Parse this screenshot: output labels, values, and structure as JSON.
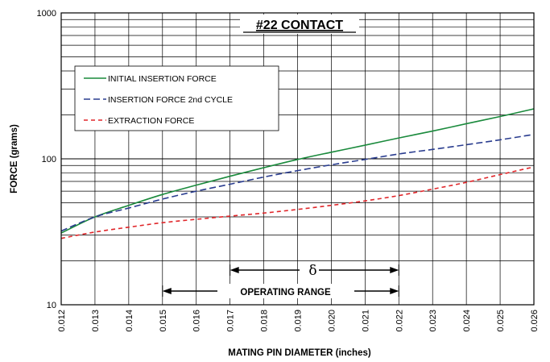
{
  "chart_data": {
    "type": "line",
    "title": "#22 CONTACT",
    "xlabel": "MATING PIN  DIAMETER (inches)",
    "ylabel": "FORCE (grams)",
    "xlim": [
      0.012,
      0.026
    ],
    "ylim": [
      10,
      1000
    ],
    "y_scale": "log",
    "grid": true,
    "legend_position": "upper-left",
    "x_ticks": [
      "0.012",
      "0.013",
      "0.014",
      "0.015",
      "0.016",
      "0.017",
      "0.018",
      "0.019",
      "0.020",
      "0.021",
      "0.022",
      "0.023",
      "0.024",
      "0.025",
      "0.026"
    ],
    "y_ticks": [
      "10",
      "100",
      "1000"
    ],
    "x": [
      0.012,
      0.013,
      0.014,
      0.015,
      0.016,
      0.017,
      0.018,
      0.019,
      0.02,
      0.021,
      0.022,
      0.023,
      0.024,
      0.025,
      0.026
    ],
    "series": [
      {
        "name": "INITIAL INSERTION FORCE",
        "color": "#1a8a3c",
        "style": "solid",
        "values": [
          31,
          40,
          48,
          57,
          66,
          76,
          87,
          99,
          111,
          124,
          139,
          155,
          174,
          195,
          220
        ]
      },
      {
        "name": "INSERTION FORCE 2nd CYCLE",
        "color": "#2a3d8f",
        "style": "dashed",
        "values": [
          32,
          40,
          46,
          53,
          60,
          67,
          75,
          83,
          91,
          99,
          108,
          116,
          125,
          135,
          147
        ]
      },
      {
        "name": "EXTRACTION FORCE",
        "color": "#e0262a",
        "style": "dashed",
        "values": [
          28.5,
          31.5,
          34,
          36.5,
          38.5,
          40.5,
          42.5,
          45,
          48,
          51.5,
          56,
          62,
          69,
          78,
          88
        ]
      }
    ],
    "annotations": {
      "delta": {
        "label": "δ",
        "x_start": 0.017,
        "x_end": 0.022
      },
      "operating_range": {
        "label": "OPERATING RANGE",
        "x_start": 0.015,
        "x_end": 0.022
      }
    }
  }
}
